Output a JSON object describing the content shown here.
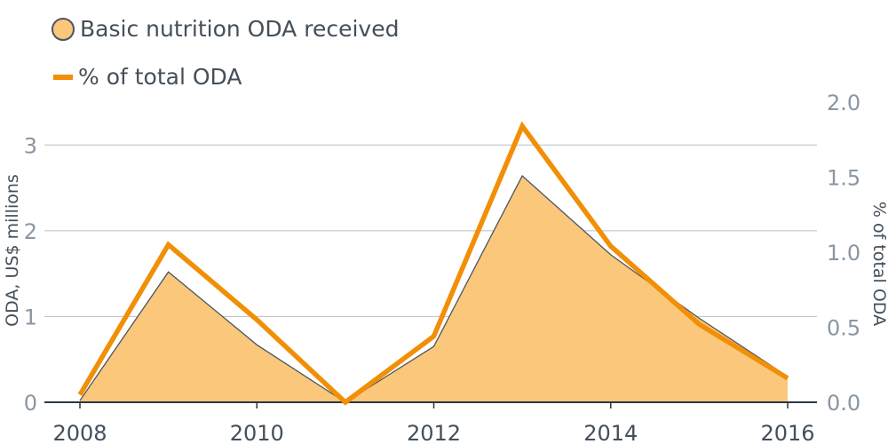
{
  "legend": {
    "area_label": "Basic nutrition ODA received",
    "line_label": "% of total ODA"
  },
  "chart_data": {
    "type": "area",
    "x": [
      2008,
      2009,
      2010,
      2011,
      2012,
      2013,
      2014,
      2015,
      2016
    ],
    "series": [
      {
        "name": "Basic nutrition ODA received",
        "type": "area",
        "axis": "left",
        "values": [
          0.02,
          1.52,
          0.67,
          0.0,
          0.65,
          2.64,
          1.72,
          0.98,
          0.3
        ],
        "fill": "#fbc77a",
        "stroke": "#4a5560"
      },
      {
        "name": "% of total ODA",
        "type": "line",
        "axis": "right",
        "values": [
          0.05,
          1.05,
          0.55,
          0.0,
          0.44,
          1.84,
          1.04,
          0.52,
          0.16
        ],
        "stroke": "#f18f07"
      }
    ],
    "ylabel_left": "ODA, US$ millions",
    "ylabel_right": "% of total ODA",
    "ylim_left": [
      0,
      3.5
    ],
    "ylim_right": [
      0,
      2.0
    ],
    "yticks_left": [
      "0",
      "1",
      "2",
      "3"
    ],
    "yticks_right": [
      "0.0",
      "0.5",
      "1.0",
      "1.5",
      "2.0"
    ],
    "xticks": [
      "2008",
      "2010",
      "2012",
      "2014",
      "2016"
    ],
    "grid": true,
    "legend_position": "top-left"
  }
}
